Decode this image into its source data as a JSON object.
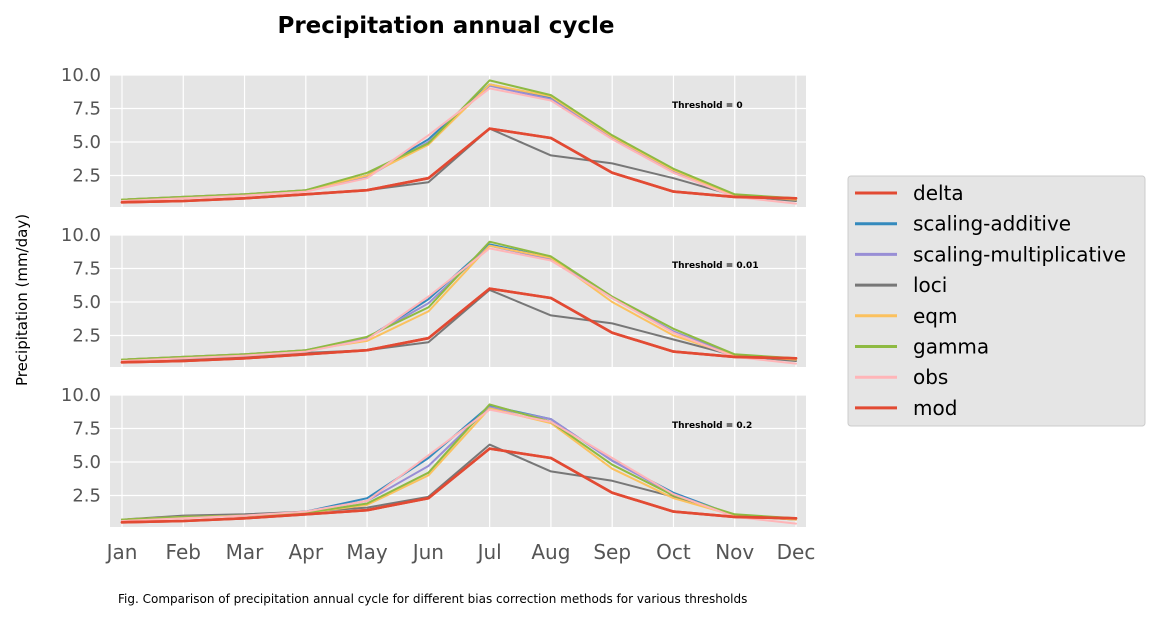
{
  "chart_data": {
    "type": "line",
    "title": "Precipitation annual cycle",
    "ylabel": "Precipitation (mm/day)",
    "xlabel": "",
    "categories": [
      "Jan",
      "Feb",
      "Mar",
      "Apr",
      "May",
      "Jun",
      "Jul",
      "Aug",
      "Sep",
      "Oct",
      "Nov",
      "Dec"
    ],
    "ylim": [
      0,
      10
    ],
    "yticks": [
      "2.5",
      "5.0",
      "7.5",
      "10.0"
    ],
    "grid": true,
    "legend_position": "right",
    "legend": [
      "delta",
      "scaling-additive",
      "scaling-multiplicative",
      "loci",
      "eqm",
      "gamma",
      "obs",
      "mod"
    ],
    "colors": {
      "delta": "#e24a33",
      "scaling-additive": "#348abd",
      "scaling-multiplicative": "#988ed5",
      "loci": "#777777",
      "eqm": "#fbc15e",
      "gamma": "#8eba42",
      "obs": "#ffb5b8",
      "mod": "#e24a33"
    },
    "panels": [
      {
        "label": "Threshold = 0",
        "series": [
          {
            "name": "scaling-additive",
            "values": [
              0.7,
              0.9,
              1.1,
              1.4,
              2.5,
              5.2,
              9.3,
              8.3,
              5.3,
              2.8,
              1.0,
              0.8
            ]
          },
          {
            "name": "scaling-multiplicative",
            "values": [
              0.7,
              0.9,
              1.1,
              1.4,
              2.4,
              5.0,
              9.2,
              8.2,
              5.3,
              2.8,
              1.0,
              0.8
            ]
          },
          {
            "name": "loci",
            "values": [
              0.5,
              0.6,
              0.8,
              1.1,
              1.4,
              2.0,
              6.0,
              4.0,
              3.4,
              2.3,
              1.0,
              0.6
            ]
          },
          {
            "name": "eqm",
            "values": [
              0.7,
              0.9,
              1.1,
              1.4,
              2.5,
              4.8,
              9.3,
              8.4,
              5.4,
              2.9,
              1.0,
              0.7
            ]
          },
          {
            "name": "gamma",
            "values": [
              0.7,
              0.9,
              1.1,
              1.4,
              2.7,
              4.9,
              9.6,
              8.5,
              5.5,
              3.0,
              1.1,
              0.8
            ]
          },
          {
            "name": "obs",
            "values": [
              0.6,
              0.8,
              1.0,
              1.3,
              2.3,
              5.5,
              9.0,
              8.1,
              5.2,
              2.7,
              0.9,
              0.4
            ]
          },
          {
            "name": "mod",
            "values": [
              0.5,
              0.6,
              0.8,
              1.1,
              1.4,
              2.3,
              6.0,
              5.3,
              2.7,
              1.3,
              0.9,
              0.8
            ]
          },
          {
            "name": "delta",
            "values": [
              0.5,
              0.6,
              0.8,
              1.1,
              1.4,
              2.3,
              6.0,
              5.3,
              2.7,
              1.3,
              0.9,
              0.8
            ]
          }
        ]
      },
      {
        "label": "Threshold = 0.01",
        "series": [
          {
            "name": "scaling-additive",
            "values": [
              0.7,
              0.9,
              1.1,
              1.4,
              2.3,
              5.2,
              9.3,
              8.3,
              5.3,
              2.8,
              1.0,
              0.8
            ]
          },
          {
            "name": "scaling-multiplicative",
            "values": [
              0.7,
              0.9,
              1.1,
              1.4,
              2.3,
              4.9,
              9.2,
              8.2,
              5.3,
              2.8,
              1.0,
              0.8
            ]
          },
          {
            "name": "loci",
            "values": [
              0.6,
              0.7,
              0.9,
              1.2,
              1.4,
              2.0,
              5.9,
              4.0,
              3.4,
              2.2,
              1.0,
              0.6
            ]
          },
          {
            "name": "eqm",
            "values": [
              0.7,
              0.9,
              1.1,
              1.4,
              2.1,
              4.3,
              9.2,
              8.3,
              5.0,
              2.5,
              1.0,
              0.7
            ]
          },
          {
            "name": "gamma",
            "values": [
              0.7,
              0.9,
              1.1,
              1.4,
              2.4,
              4.6,
              9.5,
              8.4,
              5.4,
              3.0,
              1.1,
              0.8
            ]
          },
          {
            "name": "obs",
            "values": [
              0.6,
              0.8,
              1.0,
              1.3,
              2.2,
              5.4,
              9.0,
              8.1,
              5.3,
              2.7,
              0.9,
              0.4
            ]
          },
          {
            "name": "mod",
            "values": [
              0.5,
              0.6,
              0.8,
              1.1,
              1.4,
              2.3,
              6.0,
              5.3,
              2.7,
              1.3,
              0.9,
              0.8
            ]
          },
          {
            "name": "delta",
            "values": [
              0.5,
              0.6,
              0.8,
              1.1,
              1.4,
              2.3,
              6.0,
              5.3,
              2.7,
              1.3,
              0.9,
              0.8
            ]
          }
        ]
      },
      {
        "label": "Threshold = 0.2",
        "series": [
          {
            "name": "scaling-additive",
            "values": [
              0.7,
              0.9,
              1.0,
              1.3,
              2.3,
              5.3,
              9.2,
              8.2,
              5.1,
              2.7,
              1.0,
              0.8
            ]
          },
          {
            "name": "scaling-multiplicative",
            "values": [
              0.7,
              0.9,
              1.0,
              1.3,
              2.1,
              4.7,
              9.1,
              8.2,
              5.1,
              2.6,
              1.0,
              0.8
            ]
          },
          {
            "name": "loci",
            "values": [
              0.7,
              1.0,
              1.1,
              1.3,
              1.6,
              2.4,
              6.3,
              4.3,
              3.6,
              2.4,
              1.0,
              0.7
            ]
          },
          {
            "name": "eqm",
            "values": [
              0.7,
              0.9,
              1.0,
              1.2,
              1.8,
              4.0,
              9.0,
              7.9,
              4.5,
              2.3,
              1.0,
              0.7
            ]
          },
          {
            "name": "gamma",
            "values": [
              0.7,
              0.9,
              1.0,
              1.2,
              1.9,
              4.2,
              9.3,
              8.0,
              4.8,
              2.5,
              1.1,
              0.8
            ]
          },
          {
            "name": "obs",
            "values": [
              0.6,
              0.8,
              1.0,
              1.3,
              2.1,
              5.5,
              8.9,
              8.0,
              5.3,
              2.6,
              0.9,
              0.4
            ]
          },
          {
            "name": "mod",
            "values": [
              0.5,
              0.6,
              0.8,
              1.1,
              1.4,
              2.3,
              6.0,
              5.3,
              2.7,
              1.3,
              0.9,
              0.8
            ]
          },
          {
            "name": "delta",
            "values": [
              0.5,
              0.6,
              0.8,
              1.1,
              1.4,
              2.3,
              6.0,
              5.3,
              2.7,
              1.3,
              0.9,
              0.8
            ]
          }
        ]
      }
    ]
  },
  "caption": "Fig. Comparison of precipitation annual cycle for different bias correction methods for various thresholds"
}
